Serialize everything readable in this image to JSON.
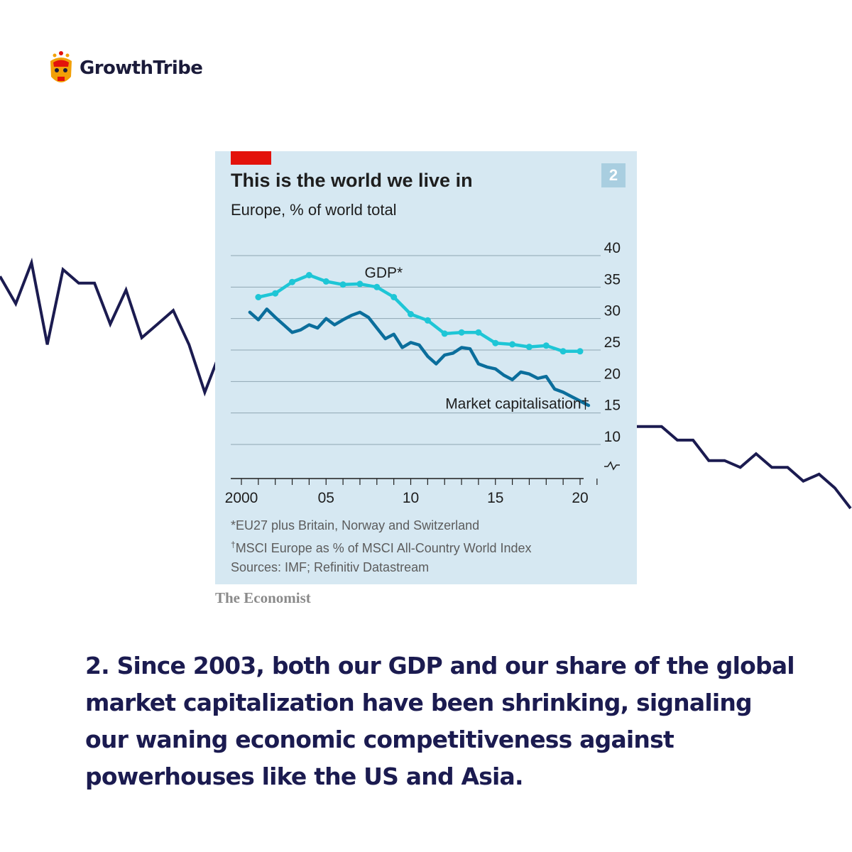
{
  "brand": {
    "name": "GrowthTribe"
  },
  "background_line": {
    "values": [
      34,
      30,
      36,
      24,
      35,
      33,
      33,
      27,
      32,
      25,
      27,
      29,
      24,
      17,
      23,
      20,
      18,
      18,
      22,
      20,
      19,
      26,
      28,
      27,
      31,
      26,
      28,
      26,
      22,
      25,
      27,
      21,
      19,
      20,
      17,
      14,
      16,
      13,
      10,
      14,
      12,
      12,
      12,
      10,
      10,
      7,
      7,
      6,
      8,
      6,
      6,
      4,
      5,
      3,
      0
    ]
  },
  "chart": {
    "number": "2",
    "title": "This is the world we live in",
    "subtitle": "Europe, % of world total",
    "footnote_gdp": "*EU27 plus Britain, Norway and Switzerland",
    "footnote_mcap_mark": "†",
    "footnote_mcap": "MSCI Europe as % of MSCI All-Country World Index",
    "sources": "Sources: IMF; Refinitiv Datastream"
  },
  "chart_data": {
    "type": "line",
    "title": "This is the world we live in",
    "subtitle": "Europe, % of world total",
    "ylim": [
      10,
      40
    ],
    "yticks": [
      "40",
      "35",
      "30",
      "25",
      "20",
      "15",
      "10"
    ],
    "xlim": [
      2000,
      2021
    ],
    "x_tick_labels": [
      {
        "year": 2000,
        "label": "2000"
      },
      {
        "year": 2005,
        "label": "05"
      },
      {
        "year": 2010,
        "label": "10"
      },
      {
        "year": 2015,
        "label": "15"
      },
      {
        "year": 2020,
        "label": "20"
      }
    ],
    "grid": true,
    "axis_break_marker": true,
    "series": [
      {
        "name": "GDP*",
        "color": "#1ec6d6",
        "x": [
          2001,
          2002,
          2003,
          2004,
          2005,
          2006,
          2007,
          2008,
          2009,
          2010,
          2011,
          2012,
          2013,
          2014,
          2015,
          2016,
          2017,
          2018,
          2019,
          2020
        ],
        "y": [
          33.4,
          34.0,
          35.8,
          36.9,
          35.9,
          35.4,
          35.5,
          35.0,
          33.4,
          30.7,
          29.7,
          27.6,
          27.8,
          27.8,
          26.1,
          25.9,
          25.5,
          25.7,
          24.8,
          24.8
        ]
      },
      {
        "name": "Market capitalisation†",
        "color": "#0b6e9c",
        "x": [
          2000.5,
          2001,
          2001.5,
          2002,
          2002.5,
          2003,
          2003.5,
          2004,
          2004.5,
          2005,
          2005.5,
          2006,
          2006.5,
          2007,
          2007.5,
          2008,
          2008.5,
          2009,
          2009.5,
          2010,
          2010.5,
          2011,
          2011.5,
          2012,
          2012.5,
          2013,
          2013.5,
          2014,
          2014.5,
          2015,
          2015.5,
          2016,
          2016.5,
          2017,
          2017.5,
          2018,
          2018.5,
          2019,
          2019.5,
          2020,
          2020.5
        ],
        "y": [
          31.0,
          29.8,
          31.5,
          30.2,
          29.0,
          27.8,
          28.2,
          29.0,
          28.5,
          30.0,
          29.0,
          29.8,
          30.5,
          31.0,
          30.2,
          28.5,
          26.8,
          27.5,
          25.4,
          26.2,
          25.8,
          24.0,
          22.8,
          24.2,
          24.5,
          25.4,
          25.2,
          22.8,
          22.3,
          22.0,
          21.0,
          20.3,
          21.5,
          21.2,
          20.5,
          20.8,
          18.8,
          18.3,
          17.6,
          16.9,
          16.2
        ]
      }
    ],
    "annotations": [
      {
        "text": "GDP*",
        "series": "GDP*"
      },
      {
        "text": "Market capitalisation†",
        "series": "Market capitalisation†"
      }
    ]
  },
  "credit": "The Economist",
  "caption": "2. Since 2003, both our GDP and our share of the global market capitalization have been shrinking, signaling our waning economic competitiveness against powerhouses like the US and Asia."
}
